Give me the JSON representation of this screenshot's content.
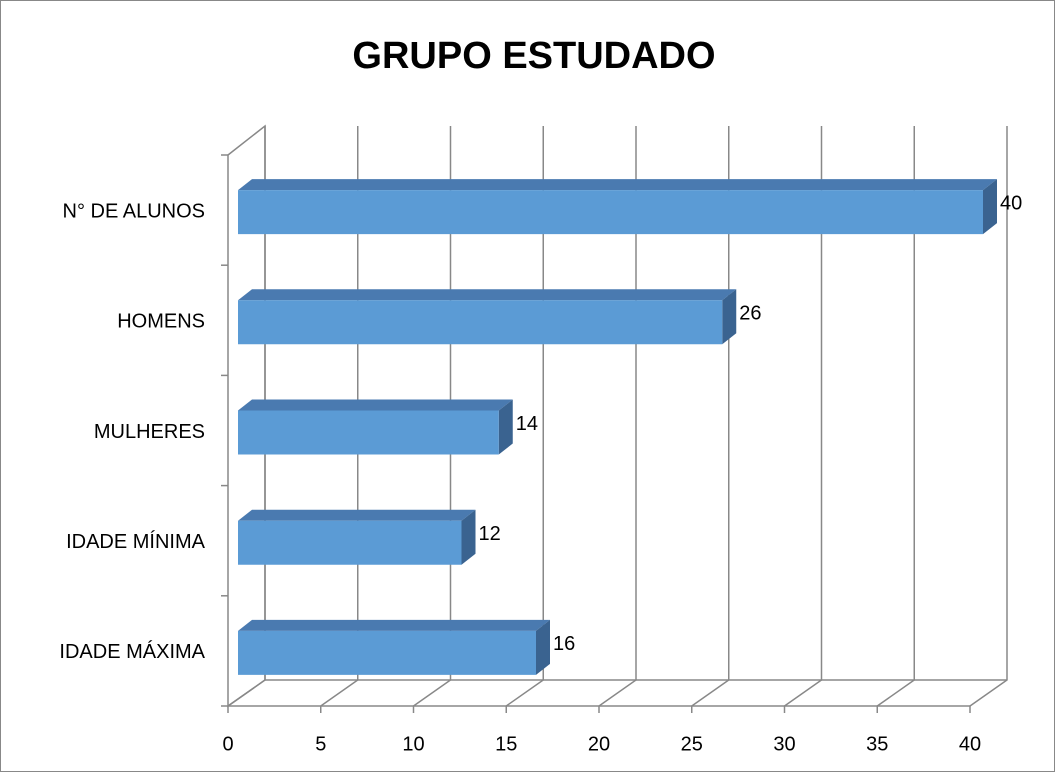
{
  "chart_data": {
    "type": "bar",
    "orientation": "horizontal",
    "three_d": true,
    "title": "GRUPO ESTUDADO",
    "categories": [
      "N° DE ALUNOS",
      "HOMENS",
      "MULHERES",
      "IDADE MÍNIMA",
      "IDADE MÁXIMA"
    ],
    "values": [
      40,
      26,
      14,
      12,
      16
    ],
    "color": "#5b9bd5",
    "xlim": [
      0,
      40
    ],
    "xticks": [
      0,
      5,
      10,
      15,
      20,
      25,
      30,
      35,
      40
    ],
    "grid": true
  }
}
